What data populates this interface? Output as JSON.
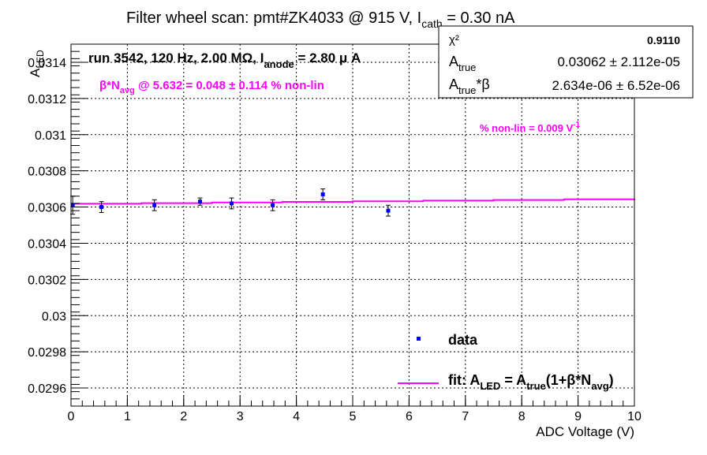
{
  "chart_data": {
    "type": "scatter",
    "title": {
      "main": "Filter wheel scan: pmt#ZK4033 @   915 V, I",
      "sub": "cath",
      "tail": " = 0.30 nA"
    },
    "xlabel": "ADC Voltage (V)",
    "ylabel": {
      "main": "A",
      "sub": "LED"
    },
    "xlim": [
      0,
      10
    ],
    "ylim": [
      0.0295,
      0.0315
    ],
    "x_ticks": [
      "0",
      "1",
      "2",
      "3",
      "4",
      "5",
      "6",
      "7",
      "8",
      "9",
      "10"
    ],
    "y_ticks": [
      "0.0296",
      "0.0298",
      "0.03",
      "0.0302",
      "0.0304",
      "0.0306",
      "0.0308",
      "0.031",
      "0.0312",
      "0.0314"
    ],
    "grid": true,
    "series": [
      {
        "name": "data",
        "color": "#0000ff",
        "points": [
          {
            "x": 0.03,
            "y": 0.03061,
            "err": 5e-05
          },
          {
            "x": 0.54,
            "y": 0.0306,
            "err": 3e-05
          },
          {
            "x": 1.48,
            "y": 0.03061,
            "err": 3e-05
          },
          {
            "x": 2.29,
            "y": 0.03063,
            "err": 2e-05
          },
          {
            "x": 2.85,
            "y": 0.03062,
            "err": 3e-05
          },
          {
            "x": 3.58,
            "y": 0.03061,
            "err": 3e-05
          },
          {
            "x": 4.47,
            "y": 0.03067,
            "err": 3e-05
          },
          {
            "x": 5.63,
            "y": 0.03058,
            "err": 3e-05
          }
        ]
      },
      {
        "name": "fit",
        "color": "#ff00ff",
        "fit": {
          "a_true": 0.03062,
          "beta": 9e-08,
          "x_start": 0,
          "x_end": 10
        }
      }
    ],
    "stats_box": {
      "rows": [
        {
          "label": "χ²",
          "value": "0.9110"
        },
        {
          "label": "A",
          "label_sub": "true",
          "value": "0.03062 ± 2.112e-05"
        },
        {
          "label": "A",
          "label_sub": "true",
          "label_tail": "*β",
          "value": "2.634e-06 ± 6.52e-06"
        }
      ]
    },
    "annotations": {
      "run": {
        "pre": "run 3542, 120 Hz, 2.00 MΩ, I",
        "sub": "anode",
        "post": " = 2.80 μ A"
      },
      "beta": {
        "pre": "β*N",
        "sub": "avg",
        "post": " @ 5.632 = 0.048 ± 0.114 % non-lin"
      },
      "nonlin": {
        "pre": "% non-lin = 0.009 V",
        "sup": "-1"
      }
    },
    "legend": {
      "placement": "bottom-right",
      "data_label": "data",
      "fit_label": {
        "a": "fit: A",
        "a_sub": "LED",
        "b": " = A",
        "b_sub": "true",
        "c": "(1+β*N",
        "c_sub": "avg",
        "d": ")"
      }
    }
  }
}
